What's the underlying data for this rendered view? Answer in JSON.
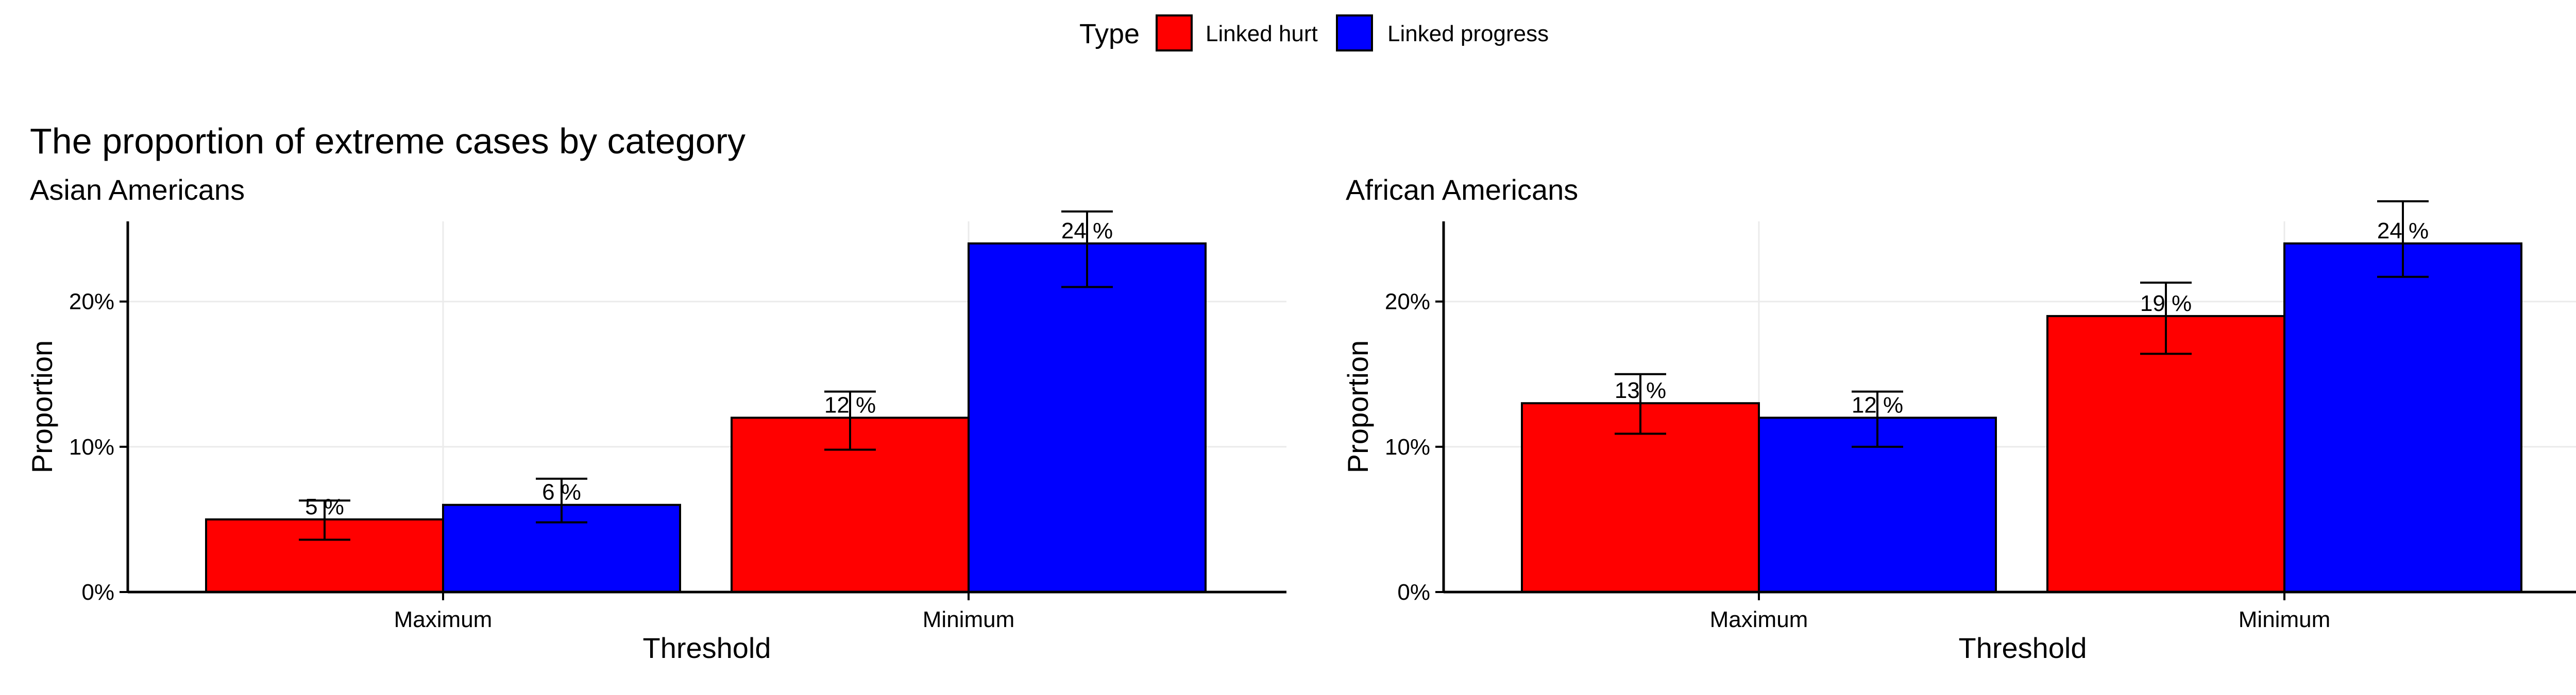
{
  "legend": {
    "title": "Type",
    "items": [
      {
        "label": "Linked hurt",
        "color": "#ff0000"
      },
      {
        "label": "Linked progress",
        "color": "#0000ff"
      }
    ]
  },
  "title": "The proportion of extreme cases by category",
  "chart_data": [
    {
      "type": "bar",
      "subtitle": "Asian Americans",
      "xlabel": "Threshold",
      "ylabel": "Proportion",
      "categories": [
        "Maximum",
        "Minimum"
      ],
      "ylim": [
        0,
        0.28
      ],
      "yticks": [
        0,
        0.1,
        0.2
      ],
      "ytick_labels": [
        "0%",
        "10%",
        "20%"
      ],
      "grid": true,
      "legend_position": "top",
      "series": [
        {
          "name": "Linked hurt",
          "color": "#ff0000",
          "values": [
            0.05,
            0.12
          ],
          "err_low": [
            0.036,
            0.098
          ],
          "err_high": [
            0.063,
            0.138
          ],
          "labels": [
            "5 %",
            "12 %"
          ]
        },
        {
          "name": "Linked progress",
          "color": "#0000ff",
          "values": [
            0.06,
            0.24
          ],
          "err_low": [
            0.048,
            0.21
          ],
          "err_high": [
            0.078,
            0.262
          ],
          "labels": [
            "6 %",
            "24 %"
          ]
        }
      ]
    },
    {
      "type": "bar",
      "subtitle": "African Americans",
      "xlabel": "Threshold",
      "ylabel": "Proportion",
      "categories": [
        "Maximum",
        "Minimum"
      ],
      "ylim": [
        0,
        0.28
      ],
      "yticks": [
        0,
        0.1,
        0.2
      ],
      "ytick_labels": [
        "0%",
        "10%",
        "20%"
      ],
      "grid": true,
      "legend_position": "top",
      "series": [
        {
          "name": "Linked hurt",
          "color": "#ff0000",
          "values": [
            0.13,
            0.19
          ],
          "err_low": [
            0.109,
            0.164
          ],
          "err_high": [
            0.15,
            0.213
          ],
          "labels": [
            "13 %",
            "19 %"
          ]
        },
        {
          "name": "Linked progress",
          "color": "#0000ff",
          "values": [
            0.12,
            0.24
          ],
          "err_low": [
            0.1,
            0.217
          ],
          "err_high": [
            0.138,
            0.269
          ],
          "labels": [
            "12 %",
            "24 %"
          ]
        }
      ]
    }
  ]
}
